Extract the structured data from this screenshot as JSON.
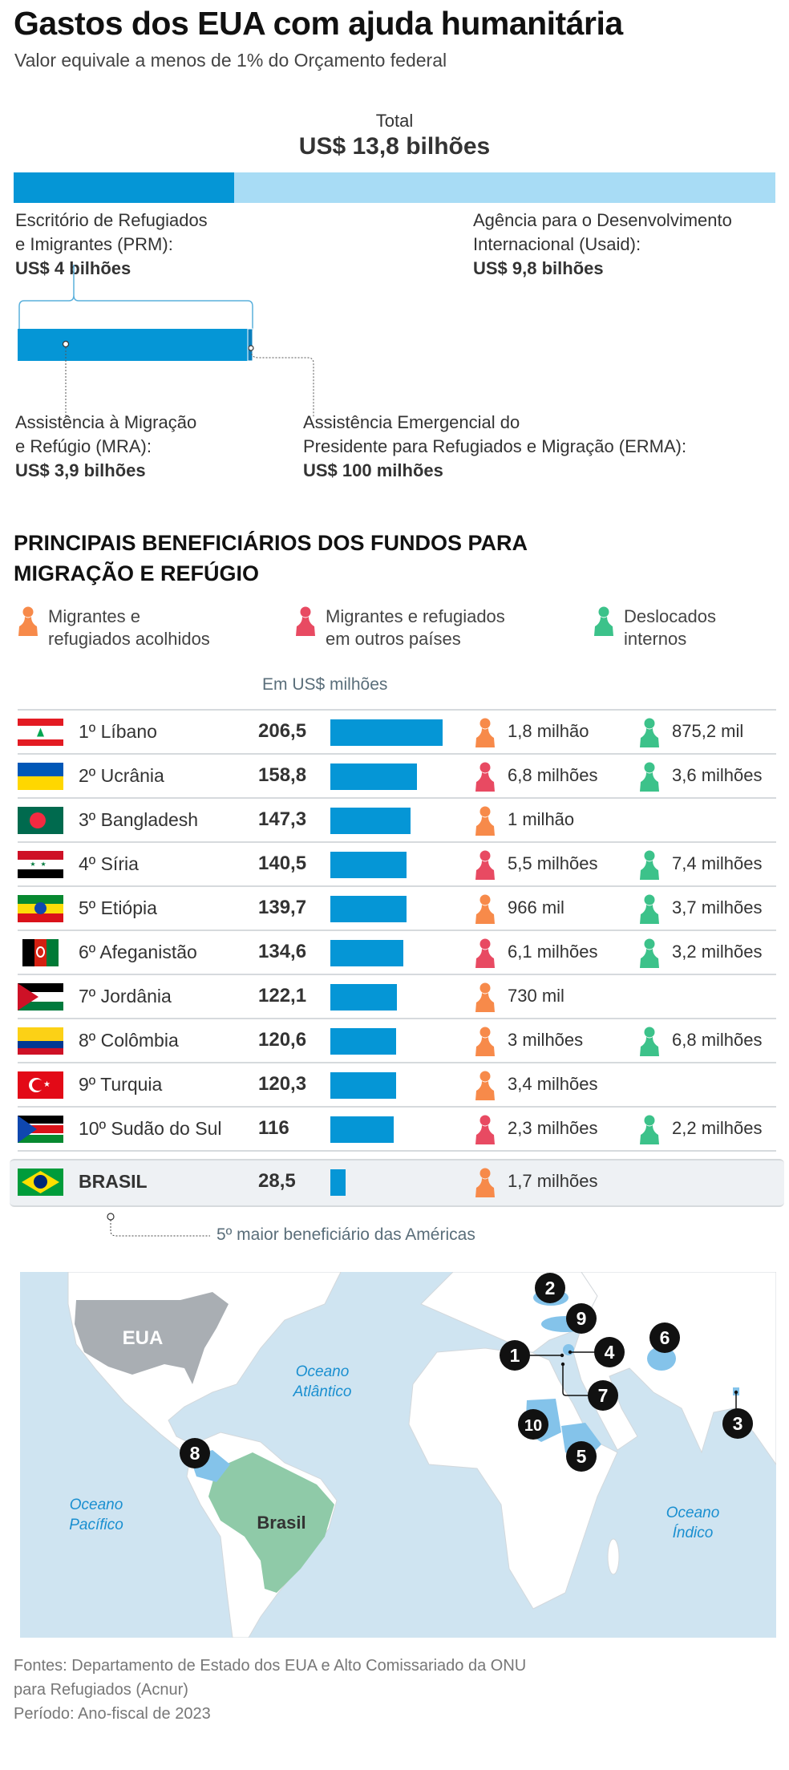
{
  "header": {
    "title": "Gastos dos EUA com ajuda humanitária",
    "subtitle": "Valor equivale a menos de 1% do Orçamento federal"
  },
  "total": {
    "label": "Total",
    "value": "US$ 13,8 bilhões"
  },
  "breakdown": {
    "prm": {
      "line1": "Escritório de Refugiados",
      "line2": "e Imigrantes (PRM):",
      "value": "US$ 4 bilhões",
      "amount_billion": 4
    },
    "usaid": {
      "line1": "Agência para o Desenvolvimento",
      "line2": "Internacional (Usaid):",
      "value": "US$ 9,8 bilhões",
      "amount_billion": 9.8
    },
    "mra": {
      "line1": "Assistência à Migração",
      "line2": "e Refúgio (MRA):",
      "value": "US$ 3,9 bilhões",
      "amount_billion": 3.9
    },
    "erma": {
      "line1": "Assistência Emergencial do",
      "line2": "Presidente para Refugiados e Migração (ERMA):",
      "value": "US$ 100 milhões",
      "amount_billion": 0.1
    }
  },
  "section": {
    "title_line1": "PRINCIPAIS BENEFICIÁRIOS DOS FUNDOS PARA",
    "title_line2": "MIGRAÇÃO E REFÚGIO",
    "legend": [
      {
        "line1": "Migrantes e",
        "line2": "refugiados acolhidos",
        "color": "#f78a4a",
        "icon": "person-icon"
      },
      {
        "line1": "Migrantes e refugiados",
        "line2": "em outros países",
        "color": "#e84a62",
        "icon": "person-icon"
      },
      {
        "line1": "Deslocados",
        "line2": "internos",
        "color": "#3cc28a",
        "icon": "person-icon"
      }
    ],
    "unit": "Em US$ milhões"
  },
  "chart_data": {
    "type": "bar",
    "orientation": "horizontal",
    "ylabel": "Em US$ milhões",
    "categories": [
      "1º Líbano",
      "2º Ucrânia",
      "3º Bangladesh",
      "4º Síria",
      "5º Etiópia",
      "6º Afeganistão",
      "7º Jordânia",
      "8º Colômbia",
      "9º Turquia",
      "10º Sudão do Sul",
      "BRASIL"
    ],
    "values": [
      206.5,
      158.8,
      147.3,
      140.5,
      139.7,
      134.6,
      122.1,
      120.6,
      120.3,
      116,
      28.5
    ],
    "labels": [
      "206,5",
      "158,8",
      "147,3",
      "140,5",
      "139,7",
      "134,6",
      "122,1",
      "120,6",
      "120,3",
      "116",
      "28,5"
    ],
    "bar_color": "#0596d6"
  },
  "rows": [
    {
      "flag": "lebanon",
      "name": "1º Líbano",
      "value": "206,5",
      "a": {
        "type": "acolhidos",
        "text": "1,8 milhão"
      },
      "b": {
        "type": "internos",
        "text": "875,2 mil"
      }
    },
    {
      "flag": "ukraine",
      "name": "2º Ucrânia",
      "value": "158,8",
      "a": {
        "type": "outros",
        "text": "6,8 milhões"
      },
      "b": {
        "type": "internos",
        "text": "3,6 milhões"
      }
    },
    {
      "flag": "bangladesh",
      "name": "3º Bangladesh",
      "value": "147,3",
      "a": {
        "type": "acolhidos",
        "text": "1 milhão"
      },
      "b": null
    },
    {
      "flag": "syria",
      "name": "4º Síria",
      "value": "140,5",
      "a": {
        "type": "outros",
        "text": "5,5 milhões"
      },
      "b": {
        "type": "internos",
        "text": "7,4 milhões"
      }
    },
    {
      "flag": "ethiopia",
      "name": "5º Etiópia",
      "value": "139,7",
      "a": {
        "type": "acolhidos",
        "text": "966 mil"
      },
      "b": {
        "type": "internos",
        "text": "3,7 milhões"
      }
    },
    {
      "flag": "afghanistan",
      "name": "6º Afeganistão",
      "value": "134,6",
      "a": {
        "type": "outros",
        "text": "6,1 milhões"
      },
      "b": {
        "type": "internos",
        "text": "3,2 milhões"
      }
    },
    {
      "flag": "jordan",
      "name": "7º Jordânia",
      "value": "122,1",
      "a": {
        "type": "acolhidos",
        "text": "730 mil"
      },
      "b": null
    },
    {
      "flag": "colombia",
      "name": "8º Colômbia",
      "value": "120,6",
      "a": {
        "type": "acolhidos",
        "text": "3 milhões"
      },
      "b": {
        "type": "internos",
        "text": "6,8 milhões"
      }
    },
    {
      "flag": "turkey",
      "name": "9º Turquia",
      "value": "120,3",
      "a": {
        "type": "acolhidos",
        "text": "3,4 milhões"
      },
      "b": null
    },
    {
      "flag": "south-sudan",
      "name": "10º Sudão do Sul",
      "value": "116",
      "a": {
        "type": "outros",
        "text": "2,3 milhões"
      },
      "b": {
        "type": "internos",
        "text": "2,2 milhões"
      }
    }
  ],
  "brasil": {
    "flag": "brazil",
    "name": "BRASIL",
    "value": "28,5",
    "a": {
      "type": "acolhidos",
      "text": "1,7 milhões"
    },
    "annotation": "5º maior beneficiário das Américas"
  },
  "map": {
    "labels": {
      "eua": "EUA",
      "brasil": "Brasil",
      "atlantico1": "Oceano",
      "atlantico2": "Atlântico",
      "pacifico1": "Oceano",
      "pacifico2": "Pacífico",
      "indico1": "Oceano",
      "indico2": "Índico"
    },
    "markers": [
      "1",
      "2",
      "3",
      "4",
      "5",
      "6",
      "7",
      "8",
      "9",
      "10"
    ],
    "colors": {
      "ocean": "#cfe4f1",
      "land": "#ffffff",
      "usa": "#a9aeb3",
      "brazil": "#8fcaa8",
      "highlight": "#84c3ea",
      "label": "#1a8fd0"
    }
  },
  "footer": {
    "line1": "Fontes: Departamento de Estado dos EUA e Alto Comissariado da ONU",
    "line2": "para Refugiados (Acnur)",
    "line3": "Período: Ano-fiscal de 2023"
  }
}
